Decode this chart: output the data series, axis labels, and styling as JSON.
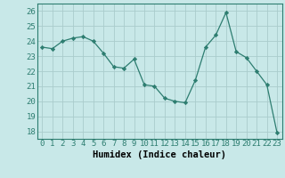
{
  "x": [
    0,
    1,
    2,
    3,
    4,
    5,
    6,
    7,
    8,
    9,
    10,
    11,
    12,
    13,
    14,
    15,
    16,
    17,
    18,
    19,
    20,
    21,
    22,
    23
  ],
  "y": [
    23.6,
    23.5,
    24.0,
    24.2,
    24.3,
    24.0,
    23.2,
    22.3,
    22.2,
    22.8,
    21.1,
    21.0,
    20.2,
    20.0,
    19.9,
    21.4,
    23.6,
    24.4,
    25.9,
    23.3,
    22.9,
    22.0,
    21.1,
    17.9
  ],
  "line_color": "#2d7d70",
  "marker": "D",
  "marker_size": 2.2,
  "bg_color": "#c8e8e8",
  "grid_color": "#aacccc",
  "xlabel": "Humidex (Indice chaleur)",
  "xlabel_fontsize": 7.5,
  "tick_fontsize": 6.5,
  "ylim": [
    17.5,
    26.5
  ],
  "yticks": [
    18,
    19,
    20,
    21,
    22,
    23,
    24,
    25,
    26
  ],
  "xlim": [
    -0.5,
    23.5
  ],
  "xticks": [
    0,
    1,
    2,
    3,
    4,
    5,
    6,
    7,
    8,
    9,
    10,
    11,
    12,
    13,
    14,
    15,
    16,
    17,
    18,
    19,
    20,
    21,
    22,
    23
  ]
}
